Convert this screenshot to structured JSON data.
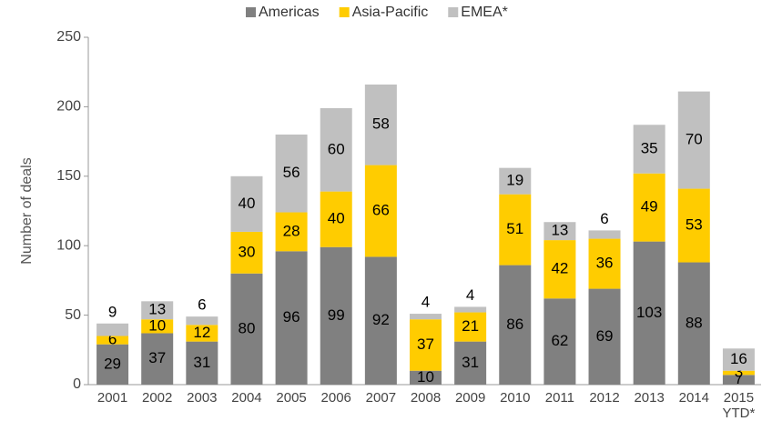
{
  "chart_data": {
    "type": "stacked_bar",
    "y_label": "Number of deals",
    "categories": [
      "2001",
      "2002",
      "2003",
      "2004",
      "2005",
      "2006",
      "2007",
      "2008",
      "2009",
      "2010",
      "2011",
      "2012",
      "2013",
      "2014",
      "2015\nYTD*"
    ],
    "series": [
      {
        "name": "Americas",
        "color": "#808080",
        "values": [
          29,
          37,
          31,
          80,
          96,
          99,
          92,
          10,
          31,
          86,
          62,
          69,
          103,
          88,
          7
        ]
      },
      {
        "name": "Asia-Pacific",
        "color": "#ffcc00",
        "values": [
          6,
          10,
          12,
          30,
          28,
          40,
          66,
          37,
          21,
          51,
          42,
          36,
          49,
          53,
          3
        ]
      },
      {
        "name": "EMEA*",
        "color": "#c0c0c0",
        "values": [
          9,
          13,
          6,
          40,
          56,
          60,
          58,
          4,
          4,
          19,
          13,
          6,
          35,
          70,
          16
        ]
      }
    ],
    "ylim": [
      0,
      250
    ],
    "yticks": [
      0,
      50,
      100,
      150,
      200,
      250
    ],
    "grid": false,
    "legend": "top"
  }
}
